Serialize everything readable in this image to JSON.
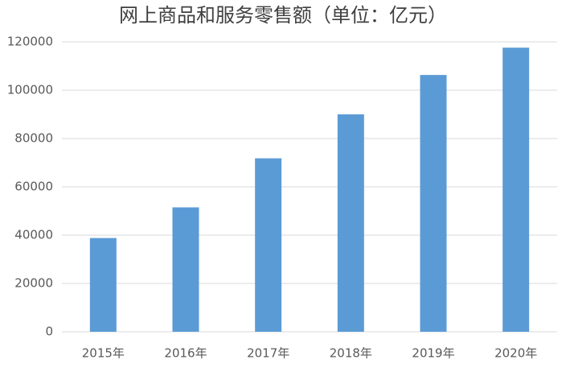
{
  "chart_data": {
    "type": "bar",
    "title": "网上商品和服务零售额（单位：亿元）",
    "categories": [
      "2015年",
      "2016年",
      "2017年",
      "2018年",
      "2019年",
      "2020年"
    ],
    "values": [
      38800,
      51500,
      71800,
      90000,
      106300,
      117600
    ],
    "color": "#5b9bd5",
    "ylim": [
      0,
      120000
    ],
    "yticks": [
      0,
      20000,
      40000,
      60000,
      80000,
      100000,
      120000
    ],
    "grid": true
  }
}
